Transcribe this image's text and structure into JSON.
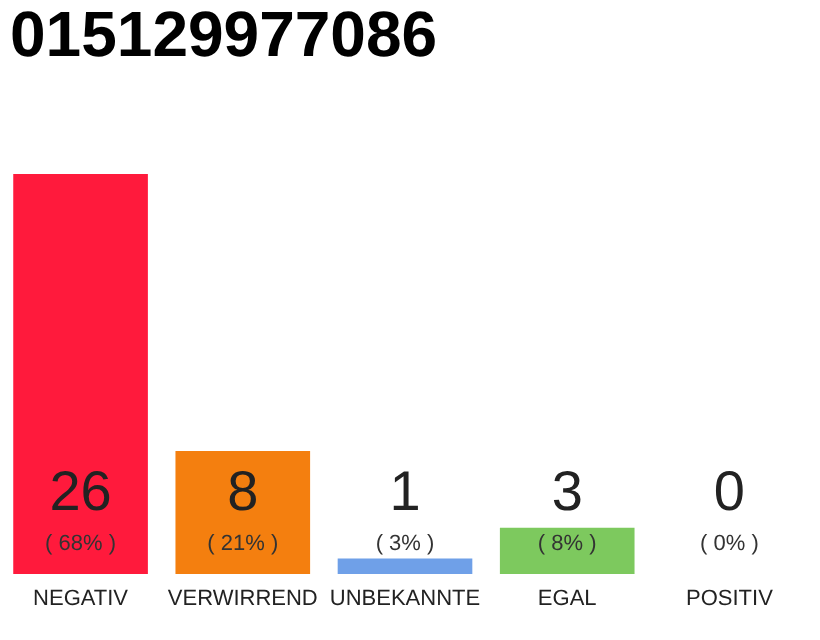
{
  "chart_data": {
    "type": "bar",
    "title": "015129977086",
    "categories": [
      "NEGATIV",
      "VERWIRREND",
      "UNBEKANNTE",
      "EGAL",
      "POSITIV"
    ],
    "values": [
      26,
      8,
      1,
      3,
      0
    ],
    "colors": [
      "#ff1a3c",
      "#f47f0f",
      "#6fa0e8",
      "#7dc95e",
      "#eeeeee"
    ],
    "data_labels": true,
    "annotations": [
      "( 68% )",
      "( 21% )",
      "( 3% )",
      "( 8% )",
      "( 0% )"
    ]
  }
}
